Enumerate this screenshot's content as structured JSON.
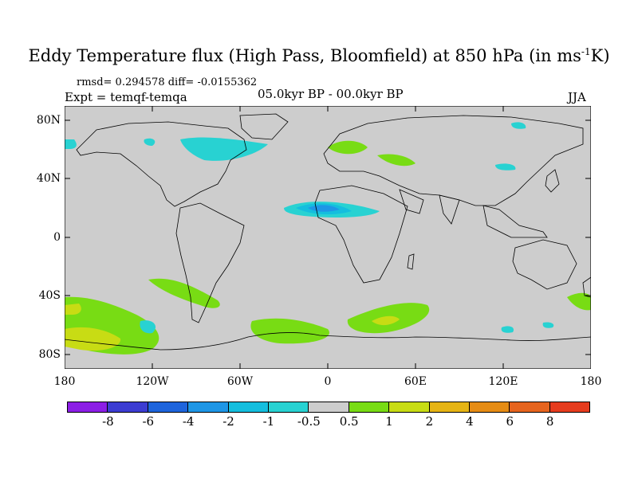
{
  "title_main": "Eddy Temperature flux (High Pass, Bloomfield) at 850 hPa (in ms",
  "title_sup": "-1",
  "title_end": "K)",
  "stats_line": "rmsd= 0.294578 diff= -0.0155362",
  "experiment": "Expt = temqf-temqa",
  "period": "05.0kyr BP - 00.0kyr BP",
  "season": "JJA",
  "map": {
    "lat_labels": [
      "80N",
      "40N",
      "0",
      "40S",
      "80S"
    ],
    "lon_labels": [
      "180",
      "120W",
      "60W",
      "0",
      "60E",
      "120E",
      "180"
    ]
  },
  "colorbar": {
    "colors": [
      "#8c1ee6",
      "#3c3cd2",
      "#1e64dc",
      "#1e96e6",
      "#14bede",
      "#28d2d2",
      "#cdcdcd",
      "#78dc14",
      "#c8dc14",
      "#e6b414",
      "#e68c14",
      "#e6641e",
      "#e63c1e"
    ],
    "labels": [
      "-8",
      "-6",
      "-4",
      "-2",
      "-1",
      "-0.5",
      "0.5",
      "1",
      "2",
      "4",
      "6",
      "8"
    ]
  }
}
